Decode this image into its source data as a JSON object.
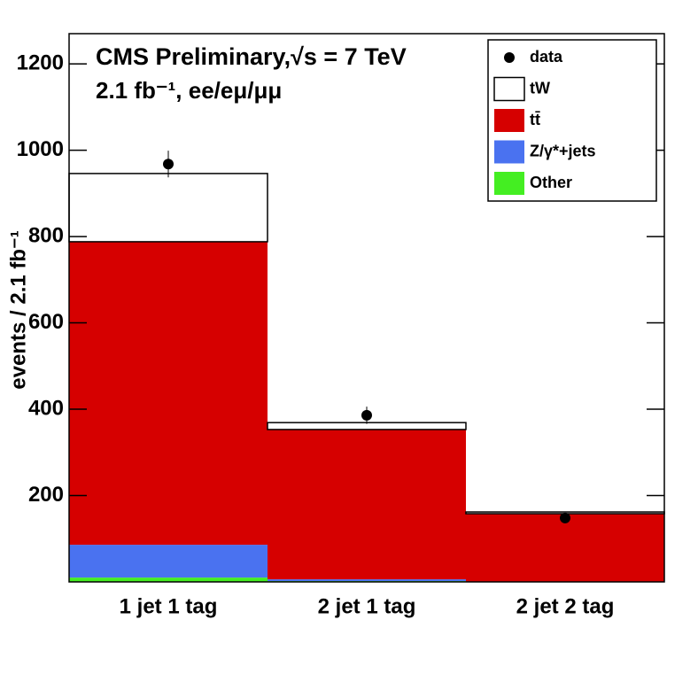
{
  "chart_data": {
    "type": "stacked-histogram",
    "title": "CMS Preliminary,√s = 7 TeV",
    "subtitle": "2.1 fb⁻¹, ee/eμ/μμ",
    "y_label": "events / 2.1 fb⁻¹",
    "categories": [
      "1 jet 1 tag",
      "2 jet 1 tag",
      "2 jet 2 tag"
    ],
    "series": [
      {
        "name": "Other",
        "color": "#44ee22",
        "values": [
          10,
          2,
          0
        ]
      },
      {
        "name": "Z/γ*+jets",
        "color": "#4a72f0",
        "values": [
          76,
          4,
          0
        ]
      },
      {
        "name": "tt̄",
        "color": "#d60000",
        "values": [
          702,
          347,
          158
        ]
      },
      {
        "name": "tW",
        "color": "#ffffff",
        "values": [
          158,
          16,
          4
        ]
      }
    ],
    "data": {
      "name": "data",
      "color": "#000000",
      "values": [
        968,
        386,
        148
      ],
      "errors": [
        31,
        20,
        12
      ]
    },
    "ylim": [
      0,
      1270
    ],
    "yticks": [
      200,
      400,
      600,
      800,
      1000,
      1200
    ]
  }
}
